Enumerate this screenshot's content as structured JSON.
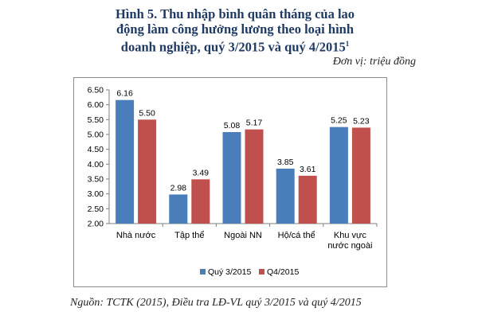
{
  "figure": {
    "title_line1": "Hình 5. Thu nhập bình quân tháng của lao",
    "title_line2": "động làm công hưởng lương theo loại hình",
    "title_line3": "doanh nghiệp, quý 3/2015 và quý 4/2015",
    "footnote_mark": "1",
    "unit": "Đơn vị: triệu đồng",
    "source": "Nguồn: TCTK (2015), Điều tra LĐ-VL quý 3/2015 và quý 4/2015"
  },
  "chart_data": {
    "type": "bar",
    "categories": [
      [
        "Nhà nước"
      ],
      [
        "Tập thể"
      ],
      [
        "Ngoài NN"
      ],
      [
        "Hộ/cá thể"
      ],
      [
        "Khu vực",
        "nước ngoài"
      ]
    ],
    "series": [
      {
        "name": "Quý 3/2015",
        "color": "#4a7ebb",
        "values": [
          6.16,
          2.98,
          5.08,
          3.85,
          5.25
        ]
      },
      {
        "name": "Q4/2015",
        "color": "#c0504d",
        "values": [
          5.5,
          3.49,
          5.17,
          3.61,
          5.23
        ]
      }
    ],
    "y_ticks": [
      "6.50",
      "6.00",
      "5.50",
      "5.00",
      "4.50",
      "4.00",
      "3.50",
      "3.00",
      "2.50",
      "2.00"
    ],
    "ylim": [
      2.0,
      6.5
    ],
    "grid": false,
    "legend_position": "bottom"
  }
}
